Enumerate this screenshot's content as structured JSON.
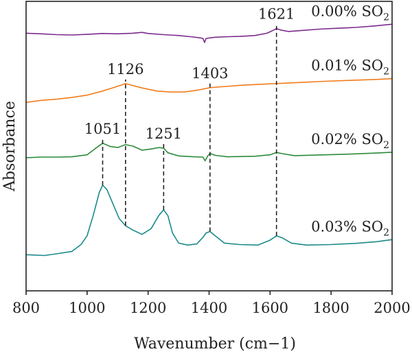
{
  "chart_data": {
    "type": "line",
    "xlabel": "Wavenumber (cm−1)",
    "ylabel": "Absorbance",
    "xlim": [
      800,
      2000
    ],
    "x_ticks": [
      800,
      1000,
      1200,
      1400,
      1600,
      1800,
      2000
    ],
    "ylim": [
      0,
      1
    ],
    "y_ticks_shown": false,
    "grid": false,
    "legend": "none",
    "series": [
      {
        "label": "0.00% SO",
        "label_sub": "2",
        "color": "#7b2a8c",
        "points": [
          [
            800,
            0.89
          ],
          [
            850,
            0.888
          ],
          [
            900,
            0.885
          ],
          [
            950,
            0.884
          ],
          [
            1000,
            0.886
          ],
          [
            1050,
            0.889
          ],
          [
            1100,
            0.888
          ],
          [
            1150,
            0.89
          ],
          [
            1180,
            0.893
          ],
          [
            1200,
            0.889
          ],
          [
            1250,
            0.885
          ],
          [
            1300,
            0.882
          ],
          [
            1340,
            0.878
          ],
          [
            1370,
            0.874
          ],
          [
            1380,
            0.872
          ],
          [
            1385,
            0.858
          ],
          [
            1390,
            0.872
          ],
          [
            1420,
            0.876
          ],
          [
            1460,
            0.878
          ],
          [
            1500,
            0.879
          ],
          [
            1550,
            0.882
          ],
          [
            1590,
            0.89
          ],
          [
            1610,
            0.9
          ],
          [
            1621,
            0.906
          ],
          [
            1635,
            0.901
          ],
          [
            1660,
            0.896
          ],
          [
            1700,
            0.899
          ],
          [
            1760,
            0.904
          ],
          [
            1820,
            0.907
          ],
          [
            1880,
            0.91
          ],
          [
            1940,
            0.915
          ],
          [
            2000,
            0.921
          ]
        ]
      },
      {
        "label": "0.01% SO",
        "label_sub": "2",
        "color": "#f07c1b",
        "points": [
          [
            800,
            0.651
          ],
          [
            850,
            0.658
          ],
          [
            900,
            0.662
          ],
          [
            950,
            0.668
          ],
          [
            1000,
            0.676
          ],
          [
            1050,
            0.69
          ],
          [
            1080,
            0.7
          ],
          [
            1110,
            0.71
          ],
          [
            1126,
            0.716
          ],
          [
            1140,
            0.712
          ],
          [
            1180,
            0.701
          ],
          [
            1230,
            0.69
          ],
          [
            1270,
            0.687
          ],
          [
            1320,
            0.687
          ],
          [
            1360,
            0.693
          ],
          [
            1403,
            0.702
          ],
          [
            1440,
            0.705
          ],
          [
            1500,
            0.71
          ],
          [
            1560,
            0.713
          ],
          [
            1621,
            0.716
          ],
          [
            1700,
            0.72
          ],
          [
            1780,
            0.724
          ],
          [
            1860,
            0.727
          ],
          [
            1940,
            0.73
          ],
          [
            2000,
            0.733
          ]
        ]
      },
      {
        "label": "0.02% SO",
        "label_sub": "2",
        "color": "#2c8a3a",
        "points": [
          [
            800,
            0.46
          ],
          [
            850,
            0.462
          ],
          [
            900,
            0.462
          ],
          [
            950,
            0.463
          ],
          [
            1000,
            0.47
          ],
          [
            1025,
            0.49
          ],
          [
            1051,
            0.51
          ],
          [
            1075,
            0.499
          ],
          [
            1100,
            0.495
          ],
          [
            1126,
            0.505
          ],
          [
            1150,
            0.5
          ],
          [
            1180,
            0.486
          ],
          [
            1210,
            0.49
          ],
          [
            1235,
            0.495
          ],
          [
            1251,
            0.493
          ],
          [
            1265,
            0.477
          ],
          [
            1300,
            0.466
          ],
          [
            1350,
            0.463
          ],
          [
            1380,
            0.462
          ],
          [
            1387,
            0.449
          ],
          [
            1395,
            0.465
          ],
          [
            1403,
            0.475
          ],
          [
            1420,
            0.468
          ],
          [
            1460,
            0.463
          ],
          [
            1550,
            0.465
          ],
          [
            1600,
            0.47
          ],
          [
            1621,
            0.478
          ],
          [
            1640,
            0.474
          ],
          [
            1680,
            0.467
          ],
          [
            1750,
            0.469
          ],
          [
            1850,
            0.472
          ],
          [
            1950,
            0.476
          ],
          [
            2000,
            0.479
          ]
        ]
      },
      {
        "label": "0.03% SO",
        "label_sub": "2",
        "color": "#1a8a8a",
        "points": [
          [
            800,
            0.125
          ],
          [
            860,
            0.122
          ],
          [
            900,
            0.128
          ],
          [
            950,
            0.136
          ],
          [
            980,
            0.16
          ],
          [
            1000,
            0.19
          ],
          [
            1020,
            0.26
          ],
          [
            1040,
            0.34
          ],
          [
            1051,
            0.365
          ],
          [
            1065,
            0.35
          ],
          [
            1085,
            0.3
          ],
          [
            1105,
            0.25
          ],
          [
            1126,
            0.225
          ],
          [
            1150,
            0.21
          ],
          [
            1180,
            0.195
          ],
          [
            1210,
            0.215
          ],
          [
            1235,
            0.26
          ],
          [
            1251,
            0.28
          ],
          [
            1265,
            0.26
          ],
          [
            1280,
            0.2
          ],
          [
            1300,
            0.165
          ],
          [
            1330,
            0.158
          ],
          [
            1360,
            0.162
          ],
          [
            1380,
            0.185
          ],
          [
            1390,
            0.2
          ],
          [
            1403,
            0.205
          ],
          [
            1420,
            0.19
          ],
          [
            1450,
            0.165
          ],
          [
            1500,
            0.16
          ],
          [
            1560,
            0.158
          ],
          [
            1600,
            0.175
          ],
          [
            1621,
            0.19
          ],
          [
            1640,
            0.183
          ],
          [
            1670,
            0.165
          ],
          [
            1720,
            0.158
          ],
          [
            1800,
            0.16
          ],
          [
            1880,
            0.164
          ],
          [
            1950,
            0.17
          ],
          [
            2000,
            0.177
          ]
        ]
      }
    ],
    "peaks": [
      {
        "label": "1051",
        "x": 1051,
        "from_series": 3,
        "to_series": 2
      },
      {
        "label": "1126",
        "x": 1126,
        "from_series": 3,
        "to_series": 1
      },
      {
        "label": "1251",
        "x": 1251,
        "from_series": 3,
        "to_series": 2
      },
      {
        "label": "1403",
        "x": 1403,
        "from_series": 3,
        "to_series": 1
      },
      {
        "label": "1621",
        "x": 1621,
        "from_series": 3,
        "to_series": 0
      }
    ]
  }
}
